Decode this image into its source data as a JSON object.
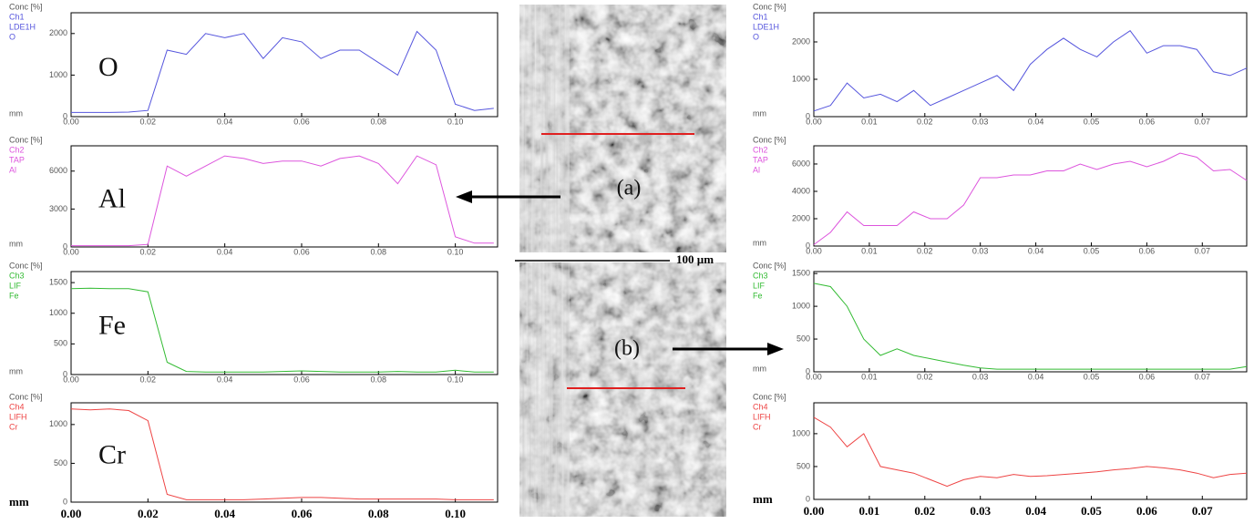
{
  "figure": {
    "labels": [
      "(a)",
      "(b)"
    ],
    "scale_bar": "100 µm"
  },
  "chart_data": [
    {
      "type": "line",
      "header": [
        "Conc [%]",
        "Ch1",
        "LDE1H",
        "O"
      ],
      "annotation": "O",
      "x_label": "mm",
      "x": [
        0,
        0.005,
        0.01,
        0.015,
        0.02,
        0.025,
        0.03,
        0.035,
        0.04,
        0.045,
        0.05,
        0.055,
        0.06,
        0.065,
        0.07,
        0.075,
        0.08,
        0.085,
        0.09,
        0.095,
        0.1,
        0.105,
        0.11
      ],
      "series": [
        {
          "color": "#5555dd",
          "values": [
            100,
            100,
            100,
            110,
            150,
            1600,
            1500,
            2000,
            1900,
            2000,
            1400,
            1900,
            1800,
            1400,
            1600,
            1600,
            1300,
            1000,
            2050,
            1600,
            300,
            150,
            200
          ]
        }
      ],
      "xlim": [
        0,
        0.111
      ],
      "xticks": [
        {
          "value": 0,
          "label": "0.00"
        },
        {
          "value": 0.02,
          "label": "0.02"
        },
        {
          "value": 0.04,
          "label": "0.04"
        },
        {
          "value": 0.06,
          "label": "0.06"
        },
        {
          "value": 0.08,
          "label": "0.08"
        },
        {
          "value": 0.1,
          "label": "0.10"
        }
      ],
      "ylim": [
        0,
        2500
      ],
      "yticks": [
        0,
        1000,
        2000
      ]
    },
    {
      "type": "line",
      "header": [
        "Conc [%]",
        "Ch2",
        "TAP",
        "Al"
      ],
      "annotation": "Al",
      "x_label": "mm",
      "x": [
        0,
        0.005,
        0.01,
        0.015,
        0.02,
        0.025,
        0.03,
        0.035,
        0.04,
        0.045,
        0.05,
        0.055,
        0.06,
        0.065,
        0.07,
        0.075,
        0.08,
        0.085,
        0.09,
        0.095,
        0.1,
        0.105,
        0.11
      ],
      "series": [
        {
          "color": "#dd55dd",
          "values": [
            100,
            100,
            100,
            100,
            200,
            6400,
            5600,
            6400,
            7200,
            7000,
            6600,
            6800,
            6800,
            6400,
            7000,
            7200,
            6600,
            5000,
            7200,
            6500,
            800,
            300,
            300
          ]
        }
      ],
      "xlim": [
        0,
        0.111
      ],
      "xticks": [
        {
          "value": 0,
          "label": "0.00"
        },
        {
          "value": 0.02,
          "label": "0.02"
        },
        {
          "value": 0.04,
          "label": "0.04"
        },
        {
          "value": 0.06,
          "label": "0.06"
        },
        {
          "value": 0.08,
          "label": "0.08"
        },
        {
          "value": 0.1,
          "label": "0.10"
        }
      ],
      "ylim": [
        0,
        8000
      ],
      "yticks": [
        0,
        3000,
        6000
      ]
    },
    {
      "type": "line",
      "header": [
        "Conc [%]",
        "Ch3",
        "LIF",
        "Fe"
      ],
      "annotation": "Fe",
      "x_label": "mm",
      "x": [
        0,
        0.005,
        0.01,
        0.015,
        0.02,
        0.025,
        0.03,
        0.035,
        0.04,
        0.045,
        0.05,
        0.055,
        0.06,
        0.065,
        0.07,
        0.075,
        0.08,
        0.085,
        0.09,
        0.095,
        0.1,
        0.105,
        0.11
      ],
      "series": [
        {
          "color": "#33bb33",
          "values": [
            1400,
            1410,
            1400,
            1400,
            1350,
            200,
            50,
            40,
            40,
            40,
            40,
            50,
            60,
            50,
            40,
            40,
            40,
            50,
            40,
            40,
            70,
            40,
            40
          ]
        }
      ],
      "xlim": [
        0,
        0.111
      ],
      "xticks": [
        {
          "value": 0,
          "label": "0.00"
        },
        {
          "value": 0.02,
          "label": "0.02"
        },
        {
          "value": 0.04,
          "label": "0.04"
        },
        {
          "value": 0.06,
          "label": "0.06"
        },
        {
          "value": 0.08,
          "label": "0.08"
        },
        {
          "value": 0.1,
          "label": "0.10"
        }
      ],
      "ylim": [
        0,
        1680
      ],
      "yticks": [
        0,
        500,
        1000,
        1500
      ]
    },
    {
      "type": "line",
      "header": [
        "Conc [%]",
        "Ch4",
        "LIFH",
        "Cr"
      ],
      "annotation": "Cr",
      "x_label": "mm",
      "x": [
        0,
        0.005,
        0.01,
        0.015,
        0.02,
        0.025,
        0.03,
        0.035,
        0.04,
        0.045,
        0.05,
        0.055,
        0.06,
        0.065,
        0.07,
        0.075,
        0.08,
        0.085,
        0.09,
        0.095,
        0.1,
        0.105,
        0.11
      ],
      "series": [
        {
          "color": "#ee4444",
          "values": [
            1200,
            1190,
            1200,
            1180,
            1050,
            100,
            30,
            30,
            30,
            30,
            40,
            50,
            60,
            60,
            50,
            40,
            40,
            40,
            40,
            40,
            30,
            30,
            30
          ]
        }
      ],
      "xlim": [
        0,
        0.111
      ],
      "xticks": [
        {
          "value": 0,
          "label": "0.00"
        },
        {
          "value": 0.02,
          "label": "0.02"
        },
        {
          "value": 0.04,
          "label": "0.04"
        },
        {
          "value": 0.06,
          "label": "0.06"
        },
        {
          "value": 0.08,
          "label": "0.08"
        },
        {
          "value": 0.1,
          "label": "0.10"
        }
      ],
      "ylim": [
        0,
        1280
      ],
      "yticks": [
        0,
        500,
        1000
      ]
    },
    {
      "type": "line",
      "header": [
        "Conc [%]",
        "Ch1",
        "LDE1H",
        "O"
      ],
      "x_label": "mm",
      "x": [
        0,
        0.003,
        0.006,
        0.009,
        0.012,
        0.015,
        0.018,
        0.021,
        0.024,
        0.027,
        0.03,
        0.033,
        0.036,
        0.039,
        0.042,
        0.045,
        0.048,
        0.051,
        0.054,
        0.057,
        0.06,
        0.063,
        0.066,
        0.069,
        0.072,
        0.075,
        0.078
      ],
      "series": [
        {
          "color": "#5555dd",
          "values": [
            150,
            300,
            900,
            500,
            600,
            400,
            700,
            300,
            500,
            700,
            900,
            1100,
            700,
            1400,
            1800,
            2100,
            1800,
            1600,
            2000,
            2300,
            1700,
            1900,
            1900,
            1800,
            1200,
            1100,
            1300
          ]
        }
      ],
      "xlim": [
        0,
        0.078
      ],
      "xticks": [
        {
          "value": 0,
          "label": "0.00"
        },
        {
          "value": 0.01,
          "label": "0.01"
        },
        {
          "value": 0.02,
          "label": "0.02"
        },
        {
          "value": 0.03,
          "label": "0.03"
        },
        {
          "value": 0.04,
          "label": "0.04"
        },
        {
          "value": 0.05,
          "label": "0.05"
        },
        {
          "value": 0.06,
          "label": "0.06"
        },
        {
          "value": 0.07,
          "label": "0.07"
        }
      ],
      "ylim": [
        0,
        2780
      ],
      "yticks": [
        0,
        1000,
        2000
      ]
    },
    {
      "type": "line",
      "header": [
        "Conc [%]",
        "Ch2",
        "TAP",
        "Al"
      ],
      "x_label": "mm",
      "x": [
        0,
        0.003,
        0.006,
        0.009,
        0.012,
        0.015,
        0.018,
        0.021,
        0.024,
        0.027,
        0.03,
        0.033,
        0.036,
        0.039,
        0.042,
        0.045,
        0.048,
        0.051,
        0.054,
        0.057,
        0.06,
        0.063,
        0.066,
        0.069,
        0.072,
        0.075,
        0.078
      ],
      "series": [
        {
          "color": "#dd55dd",
          "values": [
            100,
            1000,
            2500,
            1500,
            1500,
            1500,
            2500,
            2000,
            2000,
            3000,
            5000,
            5000,
            5200,
            5200,
            5500,
            5500,
            6000,
            5600,
            6000,
            6200,
            5800,
            6200,
            6800,
            6500,
            5500,
            5600,
            4800
          ]
        }
      ],
      "xlim": [
        0,
        0.078
      ],
      "xticks": [
        {
          "value": 0,
          "label": "0.00"
        },
        {
          "value": 0.01,
          "label": "0.01"
        },
        {
          "value": 0.02,
          "label": "0.02"
        },
        {
          "value": 0.03,
          "label": "0.03"
        },
        {
          "value": 0.04,
          "label": "0.04"
        },
        {
          "value": 0.05,
          "label": "0.05"
        },
        {
          "value": 0.06,
          "label": "0.06"
        },
        {
          "value": 0.07,
          "label": "0.07"
        }
      ],
      "ylim": [
        0,
        7330
      ],
      "yticks": [
        0,
        2000,
        4000,
        6000
      ]
    },
    {
      "type": "line",
      "header": [
        "Conc [%]",
        "Ch3",
        "LIF",
        "Fe"
      ],
      "x_label": "mm",
      "x": [
        0,
        0.003,
        0.006,
        0.009,
        0.012,
        0.015,
        0.018,
        0.021,
        0.024,
        0.027,
        0.03,
        0.033,
        0.036,
        0.039,
        0.042,
        0.045,
        0.048,
        0.051,
        0.054,
        0.057,
        0.06,
        0.063,
        0.066,
        0.069,
        0.072,
        0.075,
        0.078
      ],
      "series": [
        {
          "color": "#33bb33",
          "values": [
            1350,
            1300,
            1000,
            500,
            250,
            350,
            250,
            200,
            150,
            100,
            60,
            40,
            40,
            40,
            40,
            40,
            40,
            40,
            40,
            40,
            40,
            40,
            40,
            40,
            40,
            40,
            80
          ]
        }
      ],
      "xlim": [
        0,
        0.078
      ],
      "xticks": [
        {
          "value": 0,
          "label": "0.00"
        },
        {
          "value": 0.01,
          "label": "0.01"
        },
        {
          "value": 0.02,
          "label": "0.02"
        },
        {
          "value": 0.03,
          "label": "0.03"
        },
        {
          "value": 0.04,
          "label": "0.04"
        },
        {
          "value": 0.05,
          "label": "0.05"
        },
        {
          "value": 0.06,
          "label": "0.06"
        },
        {
          "value": 0.07,
          "label": "0.07"
        }
      ],
      "ylim": [
        0,
        1530
      ],
      "yticks": [
        0,
        500,
        1000,
        1500
      ]
    },
    {
      "type": "line",
      "header": [
        "Conc [%]",
        "Ch4",
        "LIFH",
        "Cr"
      ],
      "x_label": "mm",
      "x": [
        0,
        0.003,
        0.006,
        0.009,
        0.012,
        0.015,
        0.018,
        0.021,
        0.024,
        0.027,
        0.03,
        0.033,
        0.036,
        0.039,
        0.042,
        0.045,
        0.048,
        0.051,
        0.054,
        0.057,
        0.06,
        0.063,
        0.066,
        0.069,
        0.072,
        0.075,
        0.078
      ],
      "series": [
        {
          "color": "#ee4444",
          "values": [
            1250,
            1100,
            800,
            1000,
            500,
            450,
            400,
            300,
            200,
            300,
            350,
            330,
            380,
            350,
            360,
            380,
            400,
            420,
            450,
            470,
            500,
            480,
            450,
            400,
            330,
            380,
            400
          ]
        }
      ],
      "xlim": [
        0,
        0.078
      ],
      "xticks": [
        {
          "value": 0,
          "label": "0.00"
        },
        {
          "value": 0.01,
          "label": "0.01"
        },
        {
          "value": 0.02,
          "label": "0.02"
        },
        {
          "value": 0.03,
          "label": "0.03"
        },
        {
          "value": 0.04,
          "label": "0.04"
        },
        {
          "value": 0.05,
          "label": "0.05"
        },
        {
          "value": 0.06,
          "label": "0.06"
        },
        {
          "value": 0.07,
          "label": "0.07"
        }
      ],
      "ylim": [
        0,
        1470
      ],
      "yticks": [
        0,
        500,
        1000
      ]
    }
  ]
}
